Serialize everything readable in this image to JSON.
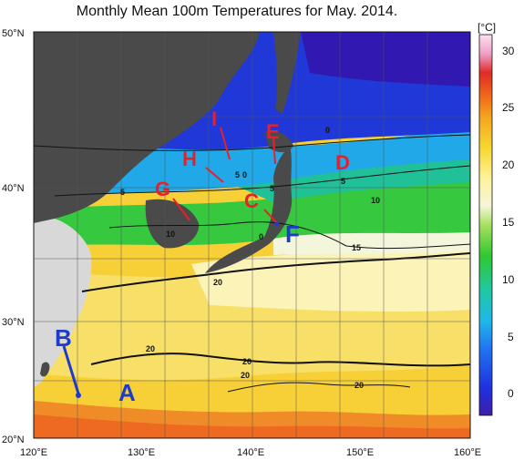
{
  "title": "Monthly Mean 100m Temperatures for May. 2014.",
  "colorbar": {
    "unit": "[°C]",
    "ticks": [
      "30",
      "25",
      "20",
      "15",
      "10",
      "5",
      "0"
    ]
  },
  "axes": {
    "lat_labels": [
      "50°N",
      "40°N",
      "30°N",
      "20°N"
    ],
    "lon_labels": [
      "120°E",
      "130°E",
      "140°E",
      "150°E",
      "160°E"
    ]
  },
  "contour_labels": [
    "0",
    "5",
    "5",
    "5",
    "10",
    "10",
    "15",
    "20",
    "20",
    "20",
    "20",
    "20",
    "0",
    "5",
    "0"
  ],
  "points": {
    "red": [
      "I",
      "H",
      "E",
      "D",
      "G",
      "C"
    ],
    "blue": [
      "F",
      "B",
      "A"
    ]
  },
  "colors": {
    "cold": "#1e2fd6",
    "cool": "#2aa0e8",
    "mid": "#30c840",
    "warm": "#f6f2a8",
    "hot": "#f0c020",
    "hotter": "#f28a20",
    "land": "#4a4a4a",
    "china": "#d8d8d8",
    "red_label": "#e8202a",
    "blue_label": "#1e3ccc"
  }
}
